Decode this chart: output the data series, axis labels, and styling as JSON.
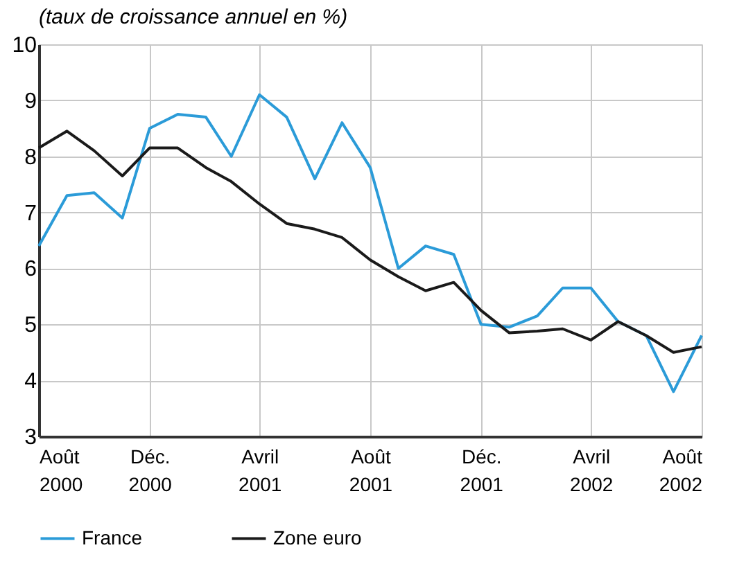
{
  "chart_data": {
    "type": "line",
    "title": "(taux de croissance annuel en %)",
    "x": [
      "2000-08",
      "2000-09",
      "2000-10",
      "2000-11",
      "2000-12",
      "2001-01",
      "2001-02",
      "2001-03",
      "2001-04",
      "2001-05",
      "2001-06",
      "2001-07",
      "2001-08",
      "2001-09",
      "2001-10",
      "2001-11",
      "2001-12",
      "2002-01",
      "2002-02",
      "2002-03",
      "2002-04",
      "2002-05",
      "2002-06",
      "2002-07",
      "2002-08"
    ],
    "series": [
      {
        "name": "France",
        "color": "#2b9bd8",
        "values": [
          6.4,
          7.3,
          7.35,
          6.9,
          8.5,
          8.75,
          8.7,
          8.0,
          9.1,
          8.7,
          7.6,
          8.6,
          7.8,
          6.0,
          6.4,
          6.25,
          5.0,
          4.95,
          5.15,
          5.65,
          5.65,
          5.05,
          4.8,
          3.8,
          4.8
        ]
      },
      {
        "name": "Zone euro",
        "color": "#1a1a1a",
        "values": [
          8.15,
          8.45,
          8.1,
          7.65,
          8.15,
          8.15,
          7.8,
          7.55,
          7.15,
          6.8,
          6.7,
          6.55,
          6.15,
          5.85,
          5.6,
          5.75,
          5.25,
          4.85,
          4.88,
          4.92,
          4.72,
          5.05,
          4.8,
          4.5,
          4.6
        ]
      }
    ],
    "xlim": [
      "2000-08",
      "2002-08"
    ],
    "xticks": [
      {
        "value": "2000-08",
        "label": "Août 2000"
      },
      {
        "value": "2000-12",
        "label": "Déc. 2000"
      },
      {
        "value": "2001-04",
        "label": "Avril 2001"
      },
      {
        "value": "2001-08",
        "label": "Août 2001"
      },
      {
        "value": "2001-12",
        "label": "Déc. 2001"
      },
      {
        "value": "2002-04",
        "label": "Avril 2002"
      },
      {
        "value": "2002-08",
        "label": "Août 2002"
      }
    ],
    "ylim": [
      3,
      10
    ],
    "yticks": [
      3,
      4,
      5,
      6,
      7,
      8,
      9,
      10
    ],
    "grid": true,
    "legend": "bottom",
    "marker": "none",
    "line_style": "solid"
  }
}
